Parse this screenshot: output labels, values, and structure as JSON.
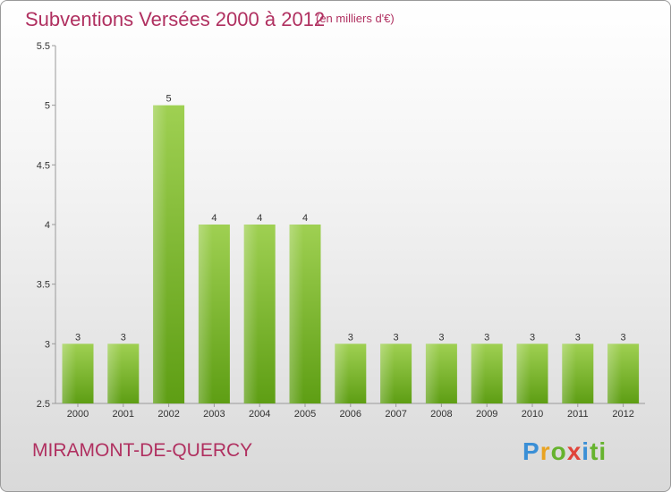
{
  "title": "Subventions Versées 2000 à 2012",
  "unit_note": "(en milliers d'€)",
  "commune": "MIRAMONT-DE-QUERCY",
  "logo": {
    "text": "Proxiti",
    "colors": [
      "#3a8fd6",
      "#e9a321",
      "#66b32e",
      "#e0443a",
      "#3a8fd6",
      "#66b32e"
    ]
  },
  "colors": {
    "bar_light": "#9fd052",
    "bar_dark": "#5e9e14",
    "title": "#b03060"
  },
  "chart_data": {
    "type": "bar",
    "categories": [
      "2000",
      "2001",
      "2002",
      "2003",
      "2004",
      "2005",
      "2006",
      "2007",
      "2008",
      "2009",
      "2010",
      "2011",
      "2012"
    ],
    "values": [
      3,
      3,
      5,
      4,
      4,
      4,
      3,
      3,
      3,
      3,
      3,
      3,
      3
    ],
    "data_labels": [
      "3",
      "3",
      "5",
      "4",
      "4",
      "4",
      "3",
      "3",
      "3",
      "3",
      "3",
      "3",
      "3"
    ],
    "ylim": [
      2.5,
      5.5
    ],
    "yticks": [
      "2.5",
      "3",
      "3.5",
      "4",
      "4.5",
      "5",
      "5.5"
    ],
    "grid": false,
    "title": "Subventions Versées 2000 à 2012",
    "xlabel": "",
    "ylabel": ""
  }
}
